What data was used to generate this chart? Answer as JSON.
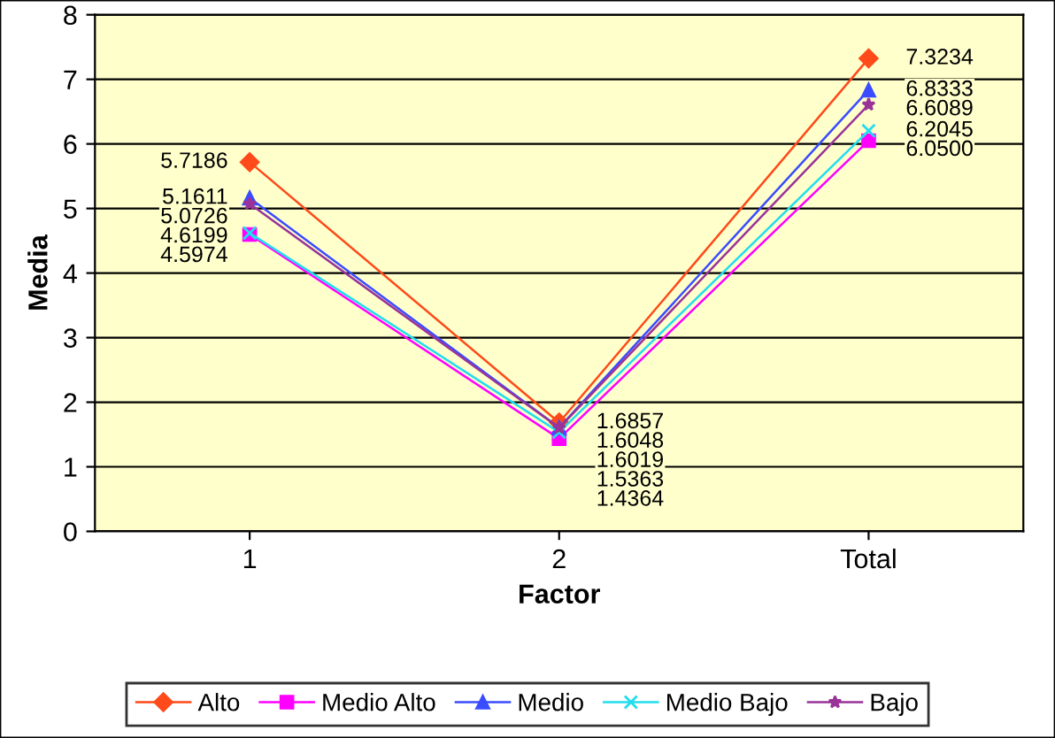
{
  "chart_data": {
    "type": "line",
    "xlabel": "Factor",
    "ylabel": "Media",
    "categories": [
      "1",
      "2",
      "Total"
    ],
    "series": [
      {
        "name": "Alto",
        "color": "#ff4a1a",
        "marker": "diamond",
        "values": [
          5.7186,
          1.6857,
          7.3234
        ],
        "value_labels": [
          "5.7186",
          "1.6857",
          "7.3234"
        ]
      },
      {
        "name": "Medio Alto",
        "color": "#ff00ff",
        "marker": "square",
        "values": [
          4.5974,
          1.4364,
          6.05
        ],
        "value_labels": [
          "4.5974",
          "1.4364",
          "6.0500"
        ]
      },
      {
        "name": "Medio",
        "color": "#3a4cff",
        "marker": "triangle",
        "values": [
          5.1611,
          1.6048,
          6.8333
        ],
        "value_labels": [
          "5.1611",
          "1.6048",
          "6.8333"
        ]
      },
      {
        "name": "Medio Bajo",
        "color": "#22ddee",
        "marker": "cross",
        "values": [
          4.6199,
          1.5363,
          6.2045
        ],
        "value_labels": [
          "4.6199",
          "1.5363",
          "6.2045"
        ]
      },
      {
        "name": "Bajo",
        "color": "#993399",
        "marker": "star",
        "values": [
          5.0726,
          1.6019,
          6.6089
        ],
        "value_labels": [
          "5.0726",
          "1.6019",
          "6.6089"
        ]
      }
    ],
    "ylim": [
      0,
      8
    ],
    "yticks": [
      0,
      1,
      2,
      3,
      4,
      5,
      6,
      7,
      8
    ],
    "grid": "y",
    "legend": "bottom"
  }
}
